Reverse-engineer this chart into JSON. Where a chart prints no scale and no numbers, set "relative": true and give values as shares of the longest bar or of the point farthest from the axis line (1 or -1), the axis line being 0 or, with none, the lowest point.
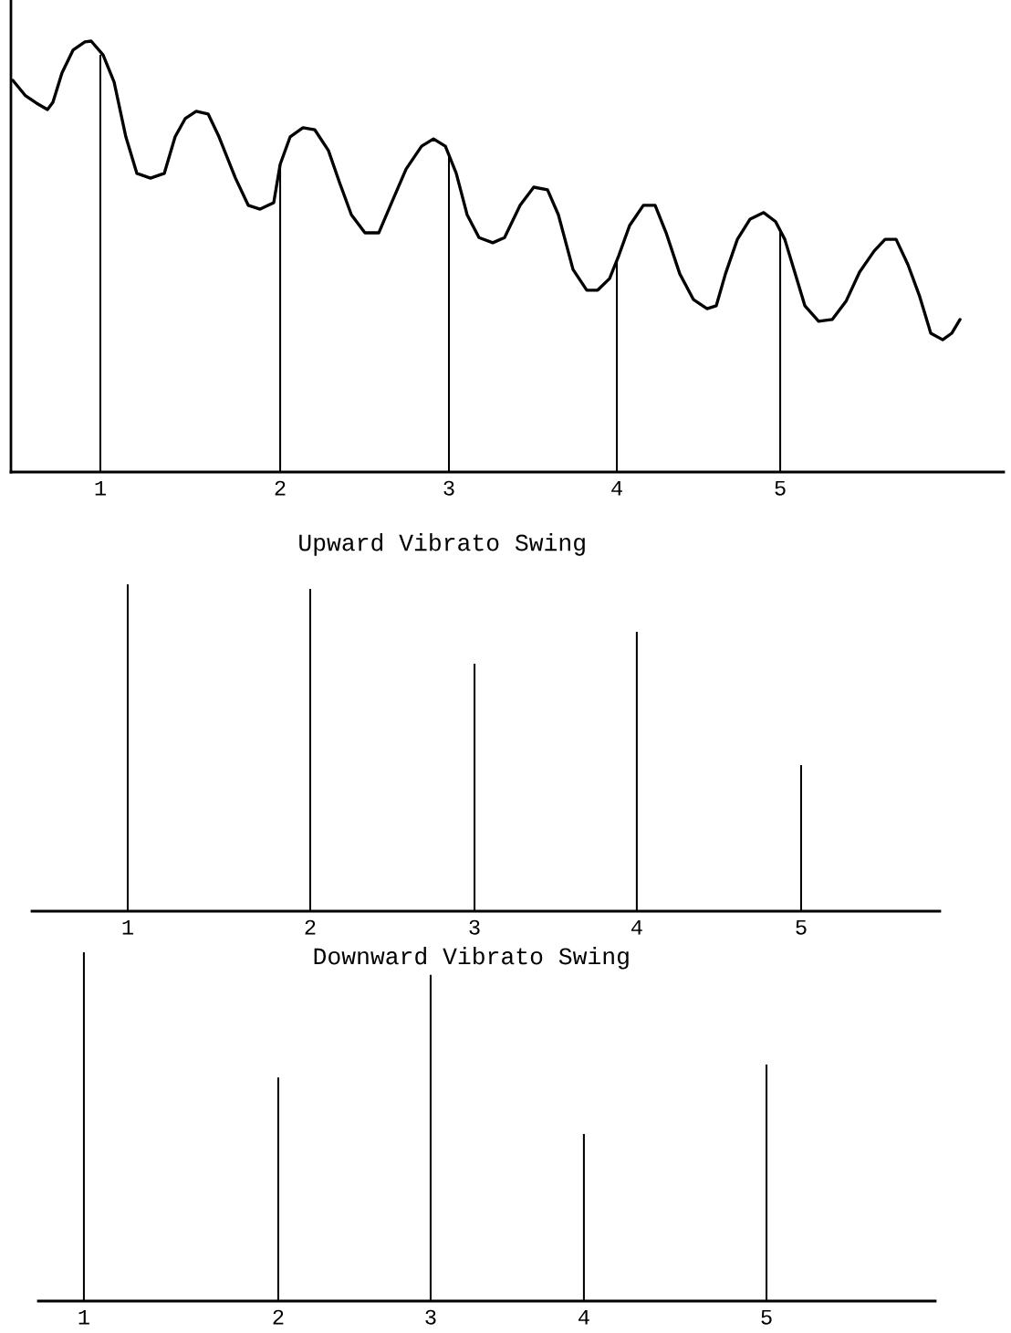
{
  "chart_data": [
    {
      "type": "line",
      "relative": true,
      "xlim": [
        0.474,
        6.315
      ],
      "xticks": [
        1,
        {
          "value": 2.058,
          "label": "2"
        },
        {
          "value": 3.051,
          "label": "3"
        },
        {
          "value": 4.039,
          "label": "4"
        },
        5
      ],
      "series": [
        {
          "type": "line",
          "color": "#000000",
          "x": [
            0.485,
            0.56,
            0.624,
            0.689,
            0.721,
            0.774,
            0.839,
            0.909,
            0.946,
            1.016,
            1.081,
            1.15,
            1.215,
            1.295,
            1.376,
            1.44,
            1.499,
            1.564,
            1.634,
            1.698,
            1.795,
            1.87,
            1.94,
            2.02,
            2.058,
            2.117,
            2.192,
            2.262,
            2.342,
            2.407,
            2.477,
            2.557,
            2.638,
            2.718,
            2.799,
            2.89,
            2.96,
            3.03,
            3.094,
            3.158,
            3.228,
            3.309,
            3.378,
            3.47,
            3.55,
            3.631,
            3.695,
            3.781,
            3.862,
            3.926,
            3.996,
            4.05,
            4.114,
            4.195,
            4.264,
            4.329,
            4.409,
            4.49,
            4.57,
            4.624,
            4.678,
            4.748,
            4.823,
            4.903,
            4.973,
            5.027,
            5.081,
            5.145,
            5.226,
            5.306,
            5.387,
            5.467,
            5.553,
            5.617,
            5.682,
            5.752,
            5.821,
            5.886,
            5.956,
            6.009,
            6.058
          ],
          "values": [
            0.909,
            0.873,
            0.856,
            0.841,
            0.858,
            0.926,
            0.979,
            0.998,
            1.0,
            0.968,
            0.905,
            0.778,
            0.693,
            0.682,
            0.693,
            0.778,
            0.82,
            0.837,
            0.831,
            0.778,
            0.682,
            0.619,
            0.61,
            0.625,
            0.714,
            0.778,
            0.799,
            0.794,
            0.746,
            0.672,
            0.597,
            0.555,
            0.555,
            0.629,
            0.703,
            0.756,
            0.773,
            0.756,
            0.693,
            0.597,
            0.544,
            0.532,
            0.544,
            0.619,
            0.661,
            0.655,
            0.597,
            0.47,
            0.422,
            0.422,
            0.449,
            0.502,
            0.572,
            0.619,
            0.619,
            0.555,
            0.46,
            0.4,
            0.379,
            0.386,
            0.46,
            0.54,
            0.587,
            0.602,
            0.581,
            0.54,
            0.47,
            0.386,
            0.35,
            0.354,
            0.396,
            0.464,
            0.513,
            0.54,
            0.54,
            0.481,
            0.407,
            0.322,
            0.307,
            0.322,
            0.354
          ]
        },
        {
          "type": "bar",
          "color": "#000000",
          "x": [
            1,
            2.058,
            3.051,
            4.039,
            5
          ],
          "values": [
            0.968,
            0.714,
            0.739,
            0.492,
            0.561
          ]
        }
      ]
    },
    {
      "type": "bar",
      "relative": true,
      "title": "Upward Vibrato Swing",
      "color": "#000000",
      "xlim": [
        0.431,
        5.824
      ],
      "xticks": [
        1,
        {
          "value": 2.084,
          "label": "2"
        },
        {
          "value": 3.06,
          "label": "3"
        },
        {
          "value": 4.024,
          "label": "4"
        },
        5
      ],
      "x": [
        1,
        2.084,
        3.06,
        4.024,
        5
      ],
      "values": [
        1,
        0.986,
        0.757,
        0.855,
        0.447
      ]
    },
    {
      "type": "bar",
      "relative": true,
      "title": "Downward Vibrato Swing",
      "color": "#000000",
      "xlim": [
        0.733,
        5.989
      ],
      "xticks": [
        1,
        {
          "value": 2.139,
          "label": "2"
        },
        {
          "value": 3.032,
          "label": "3"
        },
        {
          "value": 3.93,
          "label": "4"
        },
        5
      ],
      "x": [
        1,
        2.139,
        3.032,
        3.93,
        5
      ],
      "values": [
        1,
        0.641,
        0.935,
        0.479,
        0.678
      ]
    }
  ]
}
